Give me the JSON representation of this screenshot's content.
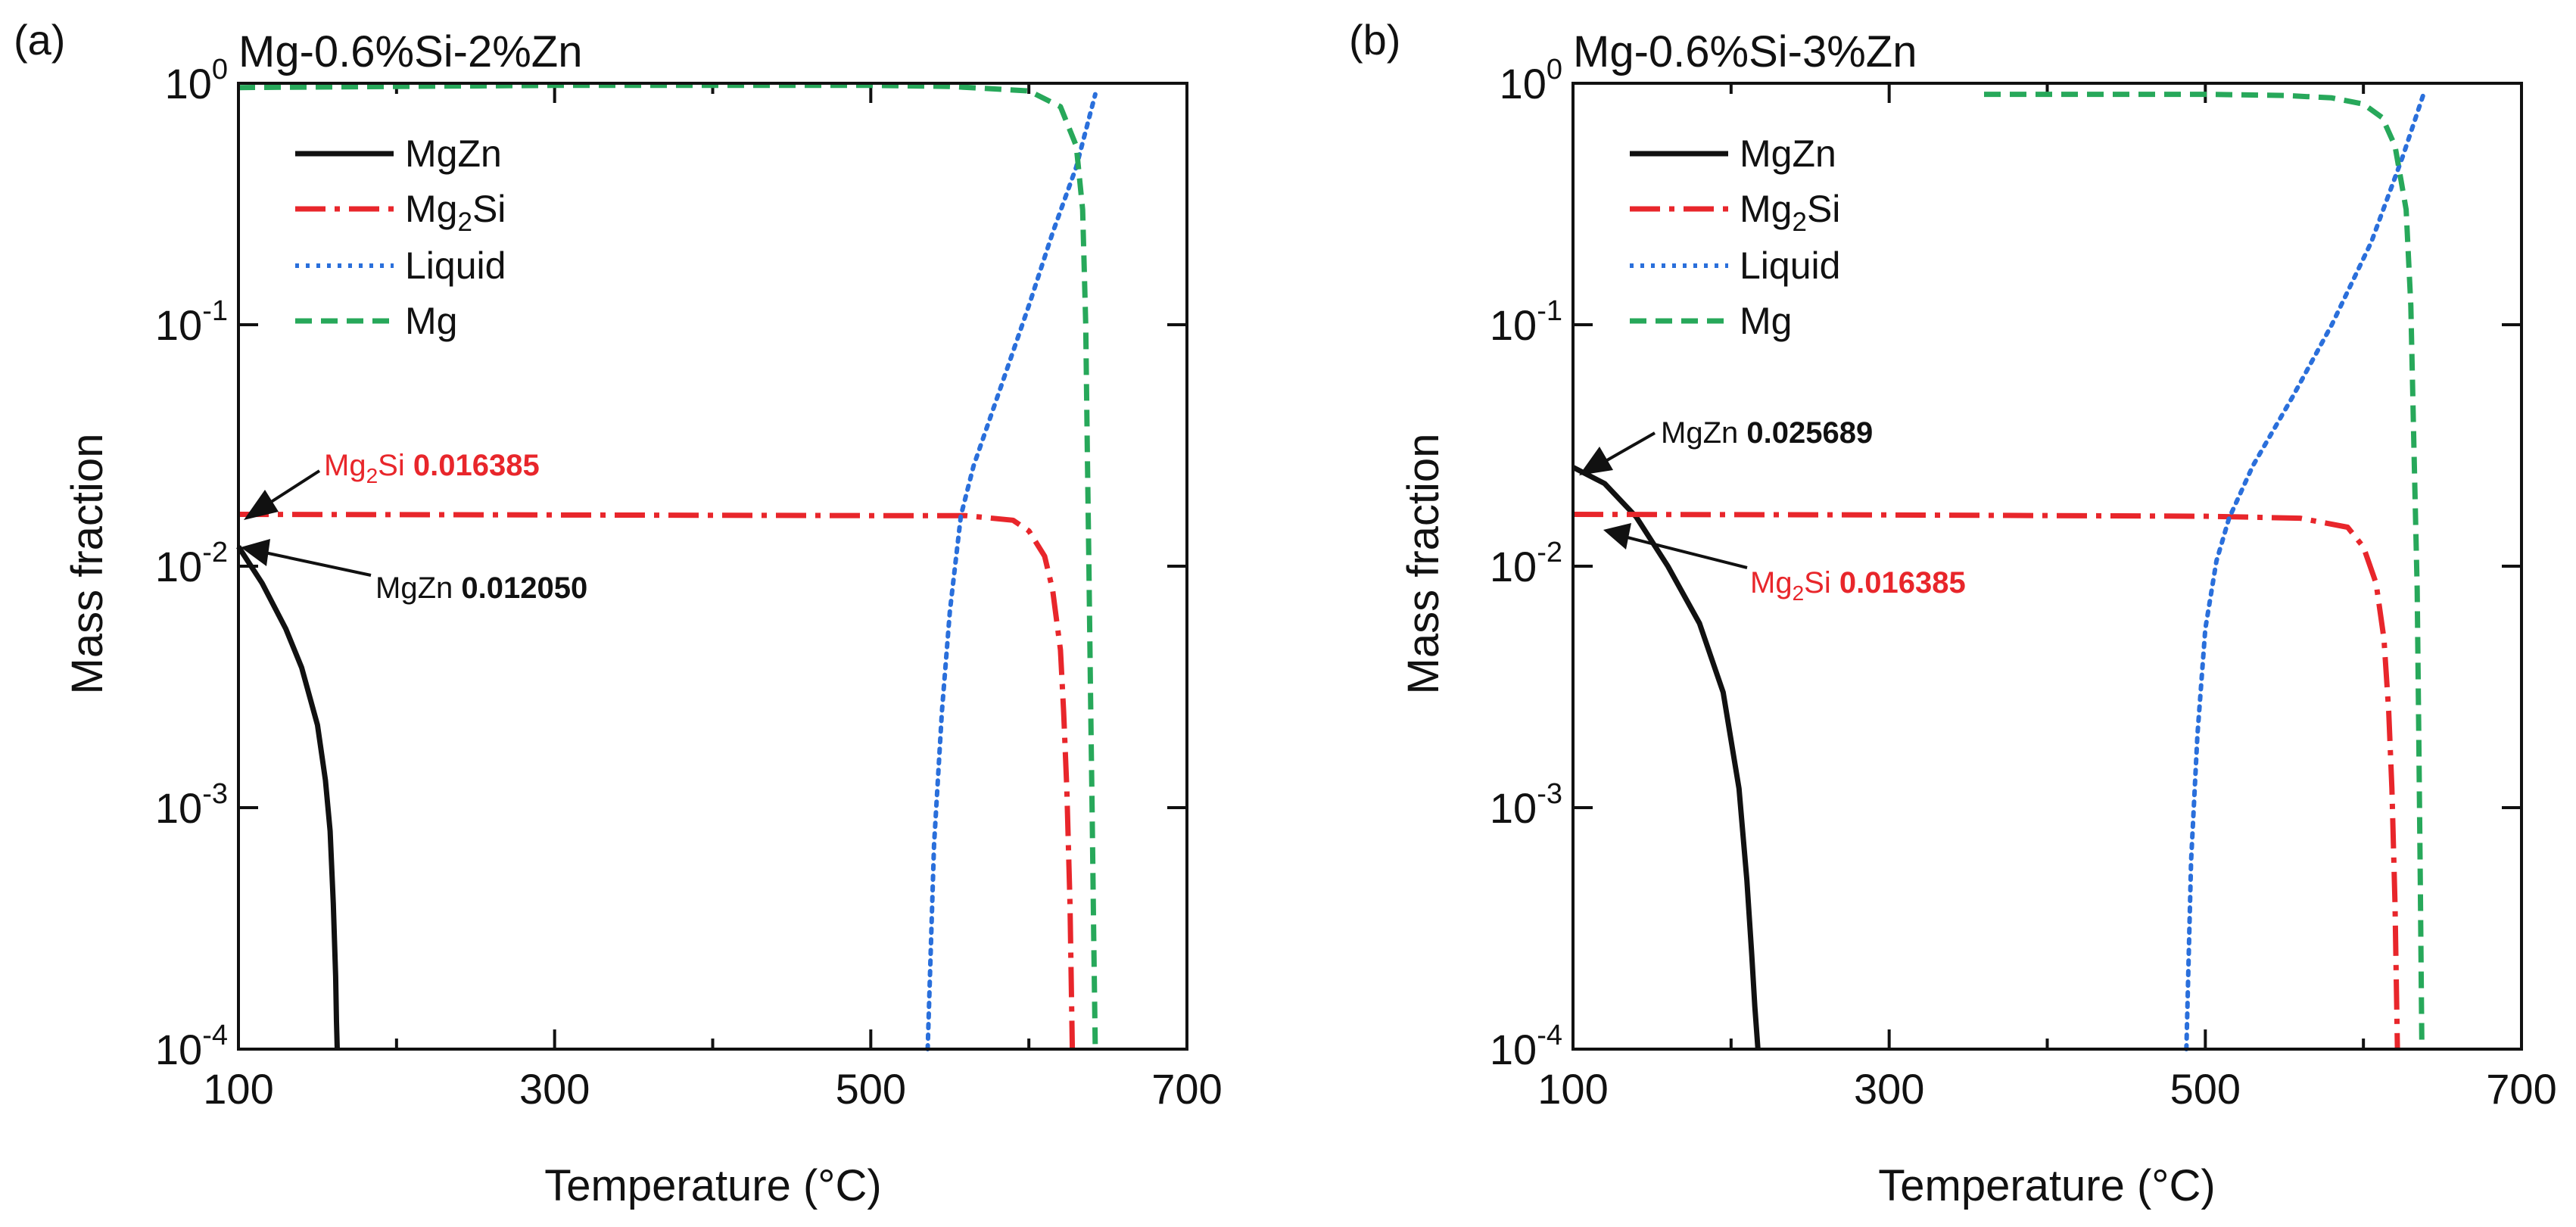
{
  "panels": [
    {
      "label": "(a)",
      "title": "Mg-0.6%Si-2%Zn",
      "xlabel": "Temperature (°C)",
      "ylabel": "Mass fraction",
      "annotations": [
        {
          "phase": "Mg",
          "sub": "2",
          "rest": "Si",
          "value": "0.016385",
          "color": "#e8262b"
        },
        {
          "phase": "MgZn",
          "sub": "",
          "rest": "",
          "value": "0.012050",
          "color": "#111111"
        }
      ]
    },
    {
      "label": "(b)",
      "title": "Mg-0.6%Si-3%Zn",
      "xlabel": "Temperature (°C)",
      "ylabel": "Mass fraction",
      "annotations": [
        {
          "phase": "MgZn",
          "sub": "",
          "rest": "",
          "value": "0.025689",
          "color": "#111111"
        },
        {
          "phase": "Mg",
          "sub": "2",
          "rest": "Si",
          "value": "0.016385",
          "color": "#e8262b"
        }
      ]
    }
  ],
  "legend": [
    {
      "name": "MgZn",
      "sub": "",
      "rest": "",
      "color": "#111111",
      "dash": "solid"
    },
    {
      "name": "Mg",
      "sub": "2",
      "rest": "Si",
      "color": "#e8262b",
      "dash": "dashdot"
    },
    {
      "name": "Liquid",
      "sub": "",
      "rest": "",
      "color": "#2a6fdb",
      "dash": "dotted"
    },
    {
      "name": "Mg",
      "sub": "",
      "rest": "",
      "color": "#27a85a",
      "dash": "dashed"
    }
  ],
  "chart_data": [
    {
      "type": "line",
      "title": "Mg-0.6%Si-2%Zn",
      "xlabel": "Temperature (°C)",
      "ylabel": "Mass fraction",
      "xlim": [
        100,
        700
      ],
      "ylim": [
        0.0001,
        1
      ],
      "yscale": "log",
      "xticks": [
        100,
        300,
        500,
        700
      ],
      "yticks": [
        {
          "base": "10",
          "exp": "-4"
        },
        {
          "base": "10",
          "exp": "-3"
        },
        {
          "base": "10",
          "exp": "-2"
        },
        {
          "base": "10",
          "exp": "-1"
        },
        {
          "base": "10",
          "exp": "0"
        }
      ],
      "legend_position": "top-left",
      "series": [
        {
          "name": "MgZn",
          "color": "#111111",
          "x": [
            100,
            115,
            130,
            140,
            150,
            155,
            158,
            160,
            161.5,
            162,
            162.5
          ],
          "y": [
            0.01205,
            0.0085,
            0.0055,
            0.0038,
            0.0022,
            0.0013,
            0.0008,
            0.0004,
            0.0002,
            0.00013,
            0.0001
          ]
        },
        {
          "name": "Mg2Si",
          "color": "#e8262b",
          "x": [
            100,
            300,
            500,
            560,
            590,
            600,
            610,
            615,
            620,
            622,
            624,
            626,
            627.5
          ],
          "y": [
            0.0164,
            0.0163,
            0.0162,
            0.0162,
            0.0155,
            0.014,
            0.011,
            0.008,
            0.0045,
            0.0025,
            0.0012,
            0.0004,
            0.0001
          ]
        },
        {
          "name": "Liquid",
          "color": "#2a6fdb",
          "x": [
            536,
            540,
            545,
            550,
            557,
            565,
            580,
            600,
            615,
            630,
            642
          ],
          "y": [
            0.0001,
            0.0007,
            0.0025,
            0.0065,
            0.0162,
            0.026,
            0.05,
            0.12,
            0.24,
            0.45,
            0.9
          ]
        },
        {
          "name": "Mg",
          "color": "#27a85a",
          "x": [
            100,
            300,
            500,
            550,
            600,
            620,
            630,
            634,
            636,
            637,
            638,
            639,
            640,
            641,
            642
          ],
          "y": [
            0.96,
            0.98,
            0.98,
            0.97,
            0.93,
            0.8,
            0.55,
            0.3,
            0.1,
            0.03,
            0.01,
            0.003,
            0.001,
            0.0003,
            0.0001
          ]
        }
      ]
    },
    {
      "type": "line",
      "title": "Mg-0.6%Si-3%Zn",
      "xlabel": "Temperature (°C)",
      "ylabel": "Mass fraction",
      "xlim": [
        100,
        700
      ],
      "ylim": [
        0.0001,
        1
      ],
      "yscale": "log",
      "xticks": [
        100,
        300,
        500,
        700
      ],
      "yticks": [
        {
          "base": "10",
          "exp": "-4"
        },
        {
          "base": "10",
          "exp": "-3"
        },
        {
          "base": "10",
          "exp": "-2"
        },
        {
          "base": "10",
          "exp": "-1"
        },
        {
          "base": "10",
          "exp": "0"
        }
      ],
      "legend_position": "top-left",
      "series": [
        {
          "name": "MgZn",
          "color": "#111111",
          "x": [
            100,
            120,
            140,
            160,
            180,
            195,
            205,
            210,
            213,
            215,
            217
          ],
          "y": [
            0.02569,
            0.022,
            0.016,
            0.01,
            0.0058,
            0.003,
            0.0012,
            0.0005,
            0.00025,
            0.00015,
            0.0001
          ]
        },
        {
          "name": "Mg2Si",
          "color": "#e8262b",
          "x": [
            100,
            300,
            500,
            560,
            590,
            600,
            608,
            613,
            616,
            618,
            620,
            621.5
          ],
          "y": [
            0.0164,
            0.0163,
            0.0161,
            0.0158,
            0.0145,
            0.012,
            0.0085,
            0.005,
            0.0025,
            0.0012,
            0.0004,
            0.0001
          ]
        },
        {
          "name": "Liquid",
          "color": "#2a6fdb",
          "x": [
            488,
            491,
            495,
            500,
            507,
            515,
            530,
            555,
            580,
            605,
            625,
            638
          ],
          "y": [
            0.0001,
            0.0006,
            0.002,
            0.0055,
            0.0105,
            0.0158,
            0.026,
            0.05,
            0.1,
            0.22,
            0.5,
            0.9
          ]
        },
        {
          "name": "Mg",
          "color": "#27a85a",
          "x": [
            360,
            400,
            500,
            550,
            580,
            600,
            612,
            620,
            627,
            630,
            632,
            634,
            635,
            636,
            637
          ],
          "y": [
            0.9,
            0.9,
            0.9,
            0.89,
            0.87,
            0.82,
            0.72,
            0.55,
            0.3,
            0.12,
            0.03,
            0.008,
            0.002,
            0.0005,
            0.0001
          ]
        }
      ]
    }
  ]
}
